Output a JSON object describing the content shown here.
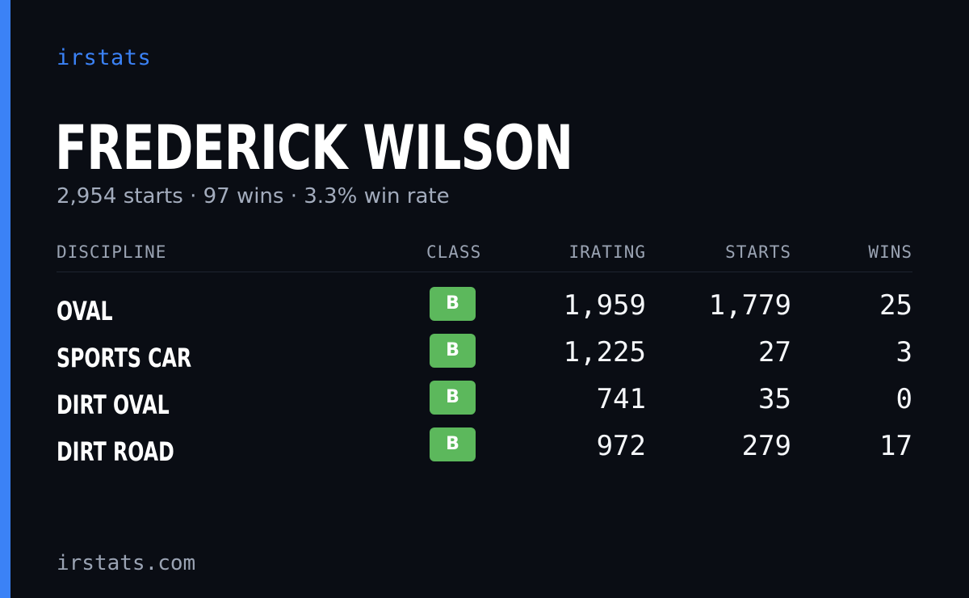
{
  "brand": "irstats",
  "driver": {
    "name": "FREDERICK WILSON",
    "summary": "2,954 starts · 97 wins · 3.3% win rate"
  },
  "table": {
    "headers": {
      "discipline": "DISCIPLINE",
      "class": "CLASS",
      "irating": "IRATING",
      "starts": "STARTS",
      "wins": "WINS"
    },
    "rows": [
      {
        "discipline": "OVAL",
        "class": "B",
        "irating": "1,959",
        "starts": "1,779",
        "wins": "25"
      },
      {
        "discipline": "SPORTS CAR",
        "class": "B",
        "irating": "1,225",
        "starts": "27",
        "wins": "3"
      },
      {
        "discipline": "DIRT OVAL",
        "class": "B",
        "irating": "741",
        "starts": "35",
        "wins": "0"
      },
      {
        "discipline": "DIRT ROAD",
        "class": "B",
        "irating": "972",
        "starts": "279",
        "wins": "17"
      }
    ]
  },
  "footer": "irstats.com",
  "colors": {
    "background": "#0a0d14",
    "accent": "#3b82f6",
    "class_badge": "#5cb85c",
    "muted_text": "#9aa3b3"
  }
}
